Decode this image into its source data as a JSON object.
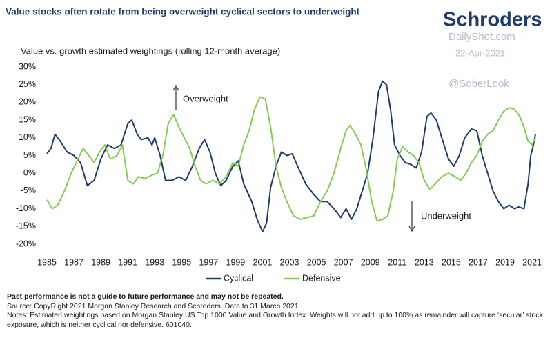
{
  "branding": {
    "logo": "Schroders",
    "site": "DailyShot.com",
    "date": "22-Apr-2021",
    "handle": "@SoberLook"
  },
  "chart_data": {
    "type": "line",
    "title": "Value stocks often rotate from being overweight cyclical sectors to underweight",
    "subtitle": "Value vs. growth estimated weightings (rolling 12-month average)",
    "annotations": [
      "Overweight",
      "Underweight"
    ],
    "xlim": [
      1985,
      2021.25
    ],
    "xticks": [
      1985,
      1987,
      1989,
      1991,
      1993,
      1995,
      1997,
      1999,
      2001,
      2003,
      2005,
      2007,
      2009,
      2011,
      2013,
      2015,
      2017,
      2019,
      2021
    ],
    "ylim": [
      -20,
      30
    ],
    "yticks": [
      {
        "value": -20,
        "label": "-20%"
      },
      {
        "value": -15,
        "label": "-15%"
      },
      {
        "value": -10,
        "label": "-10%"
      },
      {
        "value": -5,
        "label": "-5%"
      },
      {
        "value": 0,
        "label": "0%"
      },
      {
        "value": 5,
        "label": "5%"
      },
      {
        "value": 10,
        "label": "10%"
      },
      {
        "value": 15,
        "label": "15%"
      },
      {
        "value": 20,
        "label": "20%"
      },
      {
        "value": 25,
        "label": "25%"
      },
      {
        "value": 30,
        "label": "30%"
      }
    ],
    "grid": false,
    "legend": "bottom",
    "series": [
      {
        "name": "Cyclical",
        "color": "#1f3a6e",
        "x": [
          1985.0,
          1985.3,
          1985.6,
          1986.0,
          1986.5,
          1987.0,
          1987.5,
          1988.0,
          1988.5,
          1989.0,
          1989.5,
          1990.0,
          1990.5,
          1991.0,
          1991.3,
          1991.7,
          1992.0,
          1992.5,
          1992.8,
          1993.0,
          1993.4,
          1993.8,
          1994.3,
          1994.8,
          1995.3,
          1995.8,
          1996.3,
          1996.7,
          1997.1,
          1997.5,
          1997.9,
          1998.3,
          1998.8,
          1999.2,
          1999.6,
          2000.2,
          2000.6,
          2001.0,
          2001.3,
          2001.6,
          2002.0,
          2002.4,
          2002.8,
          2003.2,
          2003.6,
          2004.2,
          2004.8,
          2005.3,
          2005.8,
          2006.3,
          2006.8,
          2007.2,
          2007.6,
          2008.0,
          2008.4,
          2008.8,
          2009.2,
          2009.6,
          2009.9,
          2010.2,
          2010.5,
          2010.8,
          2011.2,
          2011.6,
          2012.0,
          2012.4,
          2012.8,
          2013.2,
          2013.5,
          2013.9,
          2014.3,
          2014.8,
          2015.2,
          2015.6,
          2016.0,
          2016.5,
          2016.9,
          2017.3,
          2017.7,
          2018.1,
          2018.5,
          2018.9,
          2019.3,
          2019.7,
          2020.0,
          2020.4,
          2020.7,
          2020.9,
          2021.1,
          2021.25
        ],
        "values": [
          5.5,
          7,
          11,
          9,
          6,
          5,
          3,
          -3.5,
          -2,
          4,
          8,
          7,
          8,
          14,
          15,
          11,
          9.5,
          10,
          8,
          10,
          5,
          -2,
          -2,
          -1,
          -2,
          2,
          7,
          9.5,
          6,
          0,
          -3.5,
          -2,
          2,
          3.5,
          -3,
          -8,
          -13,
          -16.5,
          -14,
          -4,
          2,
          6,
          5,
          5.5,
          2,
          -3,
          -6,
          -8,
          -8,
          -10,
          -12.5,
          -10,
          -13,
          -10,
          -5,
          0,
          10,
          23,
          26,
          25,
          18,
          8,
          5,
          3,
          2.5,
          1.5,
          6,
          16,
          17,
          15,
          10,
          4,
          2,
          5,
          10,
          12.5,
          12,
          5,
          0,
          -5,
          -8,
          -10,
          -9,
          -10,
          -9.5,
          -10,
          -3,
          5,
          8,
          11
        ]
      },
      {
        "name": "Defensive",
        "color": "#84cc52",
        "x": [
          1985.0,
          1985.4,
          1985.8,
          1986.3,
          1986.8,
          1987.3,
          1987.7,
          1988.1,
          1988.5,
          1988.9,
          1989.3,
          1989.7,
          1990.2,
          1990.6,
          1991.0,
          1991.4,
          1991.8,
          1992.3,
          1992.8,
          1993.2,
          1993.6,
          1994.0,
          1994.4,
          1994.8,
          1995.2,
          1995.6,
          1996.0,
          1996.4,
          1996.8,
          1997.3,
          1997.8,
          1998.3,
          1998.8,
          1999.2,
          1999.6,
          2000.0,
          2000.4,
          2000.8,
          2001.2,
          2001.6,
          2002.0,
          2002.4,
          2002.8,
          2003.3,
          2003.8,
          2004.3,
          2004.8,
          2005.3,
          2005.8,
          2006.3,
          2006.8,
          2007.2,
          2007.5,
          2007.9,
          2008.3,
          2008.7,
          2009.1,
          2009.5,
          2009.9,
          2010.3,
          2010.7,
          2011.0,
          2011.4,
          2011.8,
          2012.2,
          2012.6,
          2013.0,
          2013.4,
          2013.8,
          2014.3,
          2014.8,
          2015.3,
          2015.7,
          2016.1,
          2016.5,
          2016.9,
          2017.3,
          2017.7,
          2018.1,
          2018.5,
          2018.9,
          2019.3,
          2019.7,
          2020.1,
          2020.4,
          2020.7,
          2021.0,
          2021.25
        ],
        "values": [
          -7.5,
          -10,
          -9,
          -5,
          0,
          4,
          7,
          5,
          3,
          6,
          8,
          4,
          5,
          8,
          -2,
          -3,
          -1,
          -1.5,
          -0.5,
          0,
          5,
          14,
          16.5,
          13,
          10,
          7,
          2,
          -2,
          -3,
          -2,
          -3,
          -1,
          3,
          2,
          8,
          12,
          18,
          21.5,
          21,
          13,
          2,
          -4,
          -8,
          -12,
          -13,
          -12.5,
          -12,
          -8,
          -5,
          0,
          7,
          12,
          13.5,
          11,
          8,
          1,
          -8,
          -13.5,
          -13,
          -12,
          -5,
          4,
          7.5,
          6,
          5,
          3,
          -2,
          -4.5,
          -3,
          -1,
          0,
          -1,
          -2,
          0,
          3,
          5,
          9,
          11,
          12,
          15,
          17.5,
          18.5,
          18,
          16,
          13,
          9,
          8,
          10
        ]
      }
    ]
  },
  "footnotes": {
    "disclaimer": "Past performance is not a guide to future performance and may not be repeated.",
    "source": "Source: CopyRight 2021 Morgan Stanley Research and Schroders. Data to 31 March 2021.",
    "notes": "Notes: Estimated weightings based on Morgan Stanley US Top 1000 Value and Growth Index. Weights will not add up to 100% as remainder will capture ‘secular’ stock exposure, which is neither cyclical nor defensive. 601040."
  }
}
